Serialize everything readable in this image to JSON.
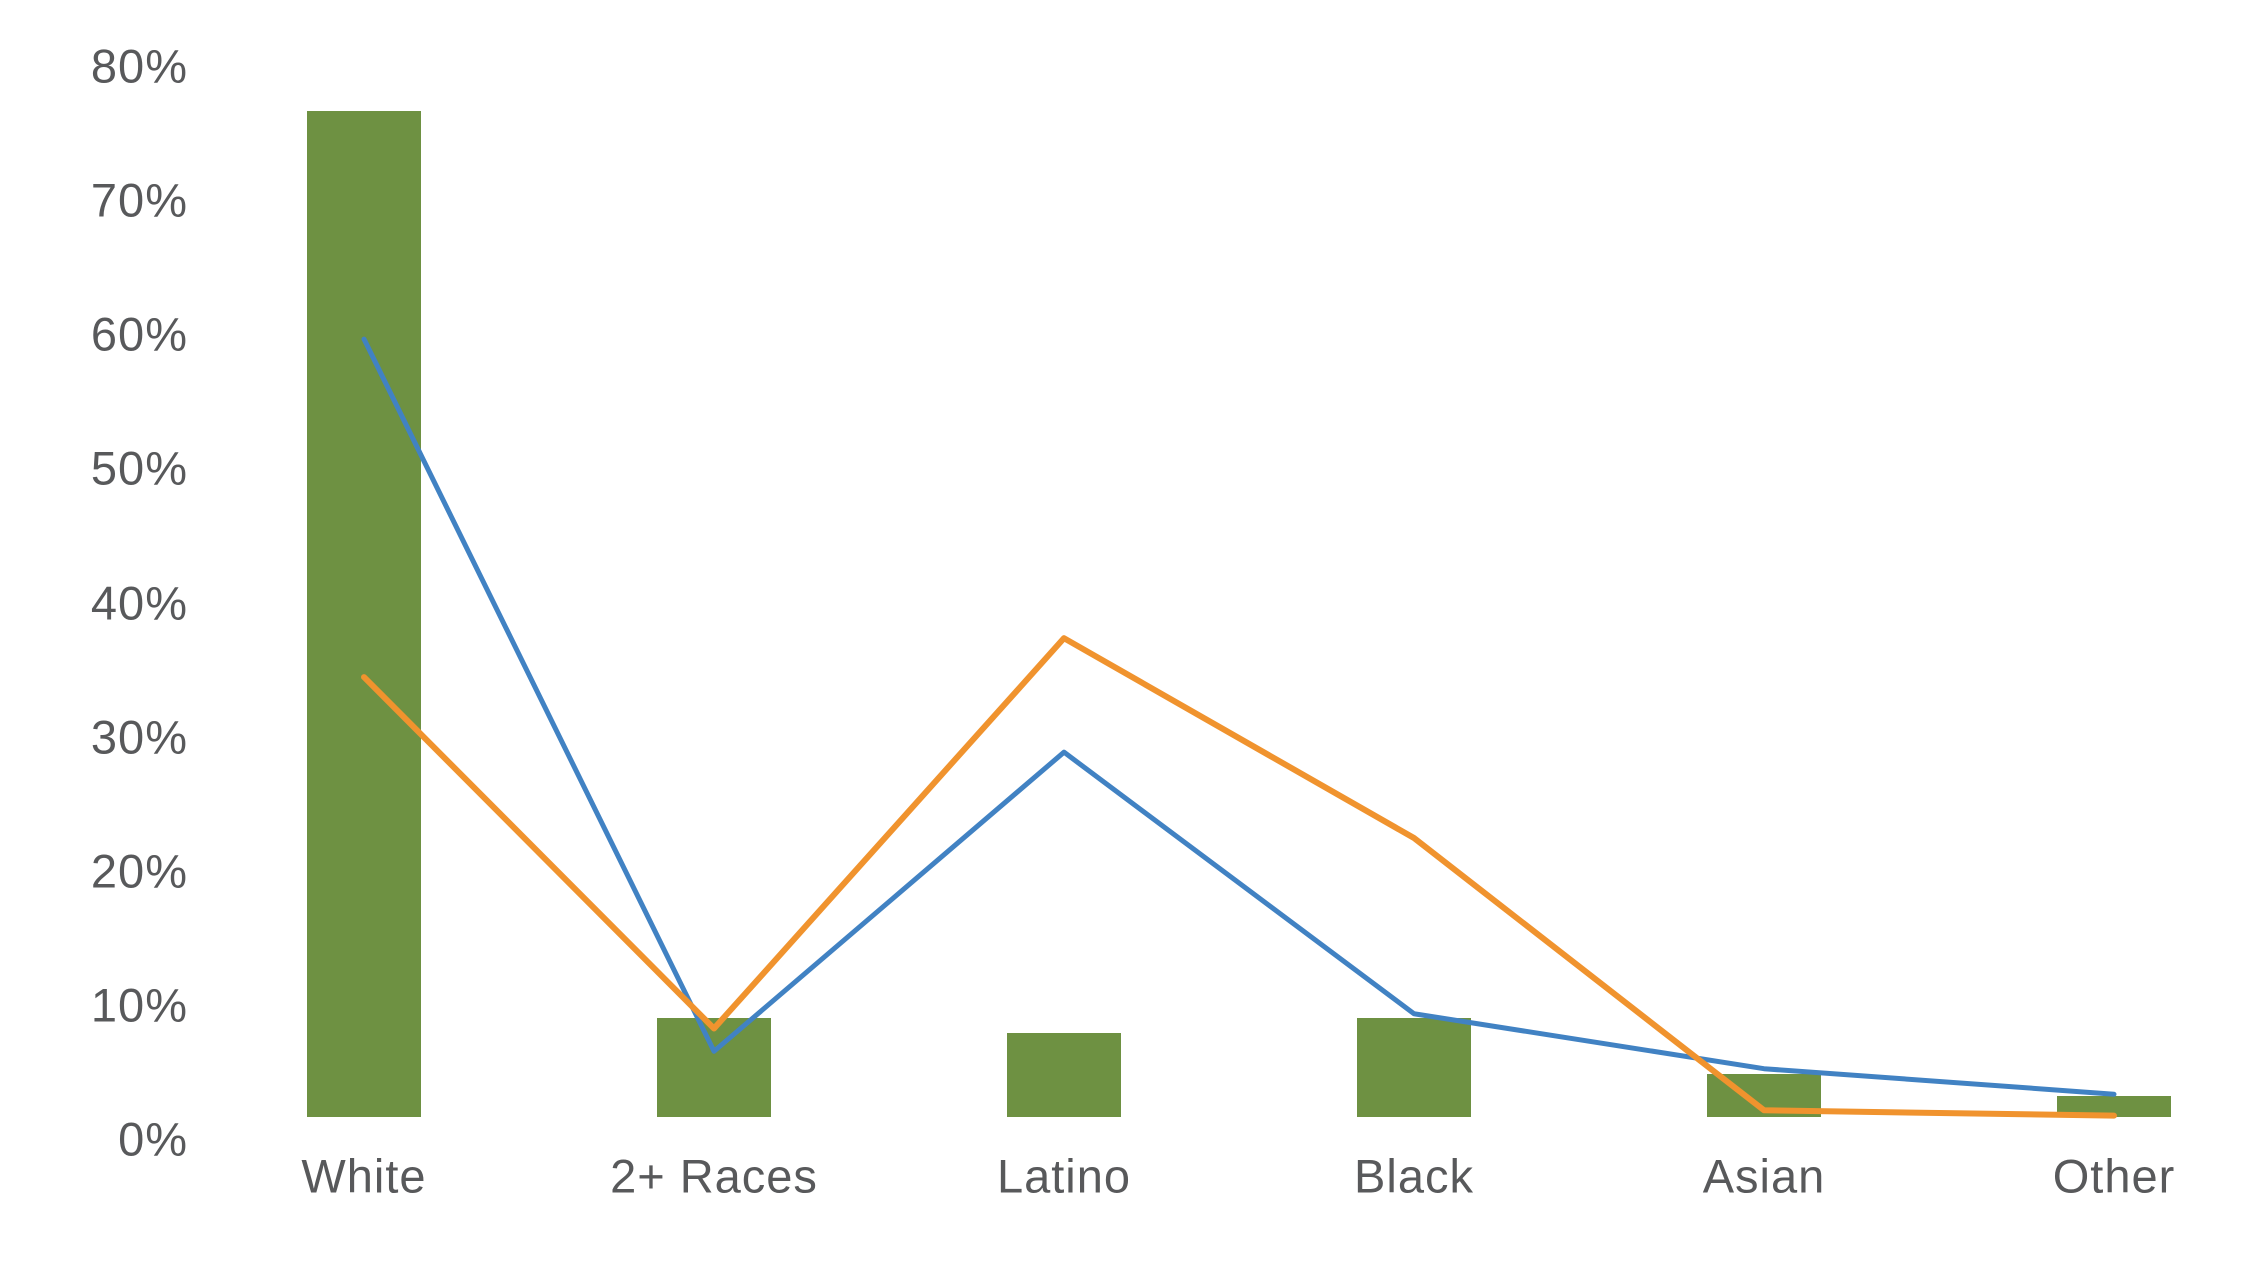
{
  "chart_data": {
    "type": "combo",
    "title": "",
    "subtitle": "",
    "legend": "none",
    "grid": false,
    "axis_text_color": "#58595b",
    "background_color": "#ffffff",
    "categories": [
      "White",
      "2+ Races",
      "Latino",
      "Black",
      "Asian",
      "Other"
    ],
    "series": [
      {
        "name": "green-bars",
        "type": "bar",
        "color": "#6e9142",
        "values": [
          75.0,
          7.4,
          6.3,
          7.4,
          3.2,
          1.6
        ]
      },
      {
        "name": "blue-line",
        "type": "line",
        "color": "#4182c3",
        "values": [
          58.0,
          4.9,
          27.2,
          7.7,
          3.6,
          1.7
        ]
      },
      {
        "name": "orange-line",
        "type": "line",
        "color": "#f0932e",
        "values": [
          32.8,
          6.6,
          35.7,
          20.8,
          0.5,
          0.1
        ]
      }
    ],
    "y_axis": {
      "min": 0,
      "max": 80,
      "tick_step": 10,
      "tick_labels": [
        "0%",
        "10%",
        "20%",
        "30%",
        "40%",
        "50%",
        "60%",
        "70%",
        "80%"
      ]
    },
    "x_axis": {
      "tick_labels": [
        "White",
        "2+ Races",
        "Latino",
        "Black",
        "Asian",
        "Other"
      ]
    }
  }
}
